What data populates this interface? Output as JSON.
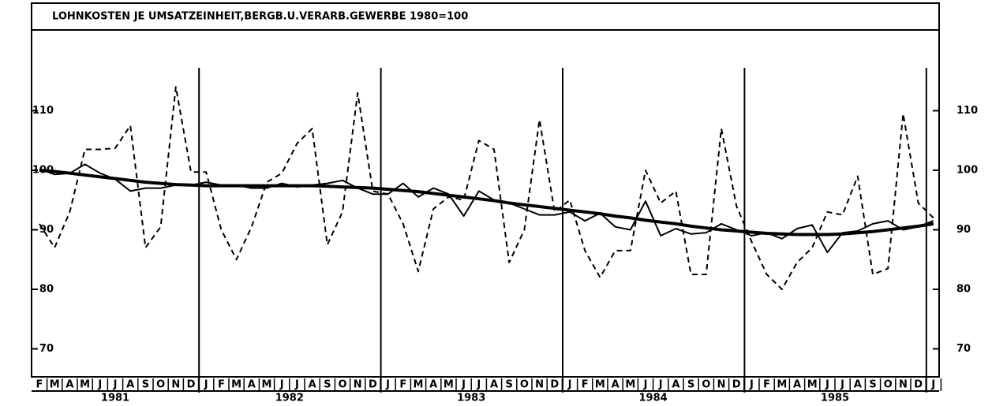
{
  "chart_data": {
    "type": "line",
    "title": "LOHNKOSTEN JE UMSATZEINHEIT,BERGB.U.VERARB.GEWERBE 1980=100",
    "categories": [
      "F",
      "M",
      "A",
      "M",
      "J",
      "J",
      "A",
      "S",
      "O",
      "N",
      "D",
      "J",
      "F",
      "M",
      "A",
      "M",
      "J",
      "J",
      "A",
      "S",
      "O",
      "N",
      "D",
      "J",
      "F",
      "M",
      "A",
      "M",
      "J",
      "J",
      "A",
      "S",
      "O",
      "N",
      "D",
      "J",
      "F",
      "M",
      "A",
      "M",
      "J",
      "J",
      "A",
      "S",
      "O",
      "N",
      "D",
      "J",
      "F",
      "M",
      "A",
      "M",
      "J",
      "J",
      "A",
      "S",
      "O",
      "N",
      "D",
      "J"
    ],
    "years": [
      "1981",
      "1982",
      "1983",
      "1984",
      "1985"
    ],
    "series": [
      {
        "color": "#000000",
        "style": "dashed",
        "width": 2,
        "values": [
          91,
          87,
          93,
          103.5,
          103.5,
          103.7,
          107.5,
          87,
          90.5,
          114,
          99.7,
          99.7,
          90,
          85,
          90.5,
          98,
          99.5,
          104.5,
          107,
          87.5,
          93,
          113,
          96.5,
          96,
          91,
          83,
          93.5,
          95.5,
          95,
          105,
          103.5,
          84.5,
          90,
          108.5,
          93,
          95,
          86.5,
          82,
          86.5,
          86.5,
          100,
          94.5,
          96.5,
          82.5,
          82.5,
          107,
          94,
          88,
          82.5,
          80,
          84.5,
          87,
          93,
          92.5,
          99,
          82.5,
          83.5,
          109.5,
          94.5,
          92
        ]
      },
      {
        "color": "#000000",
        "style": "solid",
        "width": 2,
        "values": [
          100.2,
          99.3,
          99.5,
          101,
          99.5,
          98.5,
          96.5,
          97,
          97,
          97.5,
          97.5,
          98,
          97.5,
          97.5,
          97,
          97,
          97.8,
          97.2,
          97.5,
          97.8,
          98.3,
          97,
          96,
          96,
          97.8,
          95.5,
          97,
          96,
          92.3,
          96.5,
          95,
          94.5,
          93.5,
          92.5,
          92.5,
          93,
          91.5,
          92.8,
          90.5,
          90,
          94.8,
          89,
          90.2,
          89.3,
          89.5,
          91,
          90,
          89,
          89.5,
          88.5,
          90.2,
          90.8,
          86.2,
          89.5,
          89.8,
          91,
          91.5,
          90,
          90.5,
          91.5
        ]
      },
      {
        "color": "#000000",
        "style": "solid",
        "width": 4,
        "values": [
          100,
          99.8,
          99.5,
          99.2,
          98.9,
          98.6,
          98.3,
          98,
          97.8,
          97.6,
          97.5,
          97.4,
          97.4,
          97.4,
          97.4,
          97.4,
          97.4,
          97.4,
          97.4,
          97.3,
          97.2,
          97.1,
          97,
          96.8,
          96.6,
          96.4,
          96.1,
          95.8,
          95.5,
          95.2,
          94.9,
          94.5,
          94.2,
          93.9,
          93.6,
          93.3,
          93,
          92.7,
          92.3,
          92,
          91.6,
          91.3,
          91,
          90.6,
          90.3,
          90,
          89.8,
          89.6,
          89.4,
          89.3,
          89.2,
          89.2,
          89.2,
          89.3,
          89.5,
          89.7,
          90,
          90.3,
          90.6,
          91
        ]
      }
    ],
    "ylim": [
      65.3,
      123.3
    ],
    "yticks": [
      70,
      80,
      90,
      100,
      110
    ],
    "grid": false
  }
}
